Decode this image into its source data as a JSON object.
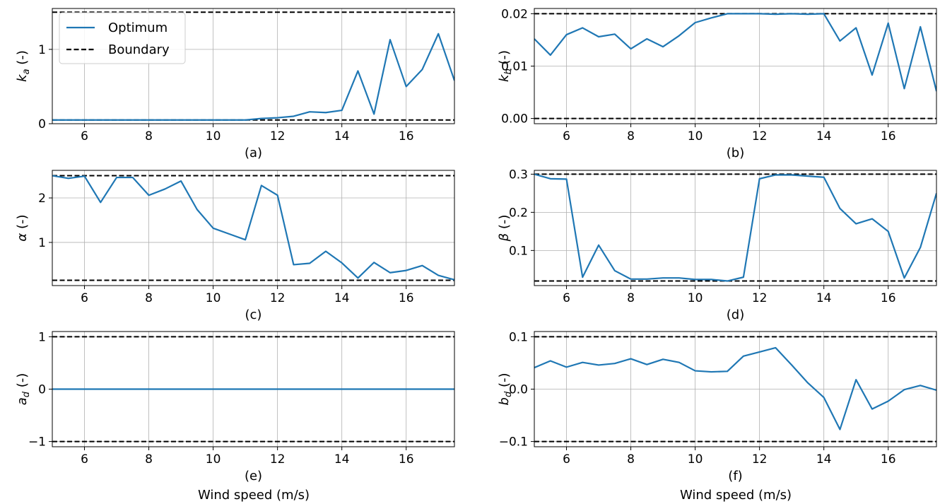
{
  "figure": {
    "legend_entries": [
      {
        "label": "Optimum",
        "color": "#1f77b4",
        "style": "solid"
      },
      {
        "label": "Boundary",
        "color": "#000000",
        "style": "dashed"
      }
    ],
    "xlabel": "Wind speed (m/s)"
  },
  "chart_data": [
    {
      "type": "line",
      "panel": "(a)",
      "ylabel": "k_a (-)",
      "ylabel_main": "k",
      "ylabel_sub": "a",
      "xlim": [
        5,
        17.5
      ],
      "ylim": [
        0,
        1.55
      ],
      "xticks": [
        6,
        8,
        10,
        12,
        14,
        16
      ],
      "yticks": [
        0,
        1
      ],
      "ytick_labels": [
        "0",
        "1"
      ],
      "grid": true,
      "legend": "top-left",
      "boundary": [
        0.05,
        1.5
      ],
      "series": [
        {
          "name": "Optimum",
          "x": [
            5,
            5.5,
            6,
            6.5,
            7,
            7.5,
            8,
            8.5,
            9,
            9.5,
            10,
            10.5,
            11,
            11.5,
            12,
            12.5,
            13,
            13.5,
            14,
            14.5,
            15,
            15.5,
            16,
            16.5,
            17,
            17.5
          ],
          "y": [
            0.05,
            0.05,
            0.05,
            0.05,
            0.05,
            0.05,
            0.05,
            0.05,
            0.05,
            0.05,
            0.05,
            0.05,
            0.05,
            0.07,
            0.08,
            0.1,
            0.16,
            0.15,
            0.18,
            0.71,
            0.13,
            1.13,
            0.5,
            0.73,
            1.21,
            0.58
          ]
        }
      ]
    },
    {
      "type": "line",
      "panel": "(b)",
      "ylabel": "k_b (-)",
      "ylabel_main": "k",
      "ylabel_sub": "b",
      "xlim": [
        5,
        17.5
      ],
      "ylim": [
        -0.001,
        0.021
      ],
      "xticks": [
        6,
        8,
        10,
        12,
        14,
        16
      ],
      "yticks": [
        0,
        0.01,
        0.02
      ],
      "ytick_labels": [
        "0.00",
        "0.01",
        "0.02"
      ],
      "grid": true,
      "boundary": [
        0,
        0.02
      ],
      "series": [
        {
          "name": "Optimum",
          "x": [
            5,
            5.5,
            6,
            6.5,
            7,
            7.5,
            8,
            8.5,
            9,
            9.5,
            10,
            10.5,
            11,
            11.5,
            12,
            12.5,
            13,
            13.5,
            14,
            14.5,
            15,
            15.5,
            16,
            16.5,
            17,
            17.5
          ],
          "y": [
            0.0152,
            0.0121,
            0.016,
            0.0173,
            0.0156,
            0.0161,
            0.0133,
            0.0152,
            0.0137,
            0.0158,
            0.0183,
            0.0192,
            0.02,
            0.02,
            0.02,
            0.0199,
            0.02,
            0.0199,
            0.02,
            0.0148,
            0.0173,
            0.0083,
            0.0182,
            0.0057,
            0.0175,
            0.0052
          ]
        }
      ]
    },
    {
      "type": "line",
      "panel": "(c)",
      "ylabel": "α (-)",
      "ylabel_main": "α",
      "ylabel_sub": "",
      "xlim": [
        5,
        17.5
      ],
      "ylim": [
        0.03,
        2.62
      ],
      "xticks": [
        6,
        8,
        10,
        12,
        14,
        16
      ],
      "yticks": [
        1,
        2
      ],
      "ytick_labels": [
        "1",
        "2"
      ],
      "grid": true,
      "boundary": [
        0.15,
        2.5
      ],
      "series": [
        {
          "name": "Optimum",
          "x": [
            5,
            5.5,
            6,
            6.5,
            7,
            7.5,
            8,
            8.5,
            9,
            9.5,
            10,
            10.5,
            11,
            11.5,
            12,
            12.5,
            13,
            13.5,
            14,
            14.5,
            15,
            15.5,
            16,
            16.5,
            17,
            17.5
          ],
          "y": [
            2.5,
            2.44,
            2.49,
            1.9,
            2.46,
            2.46,
            2.06,
            2.2,
            2.38,
            1.74,
            1.32,
            1.19,
            1.06,
            2.28,
            2.06,
            0.5,
            0.53,
            0.8,
            0.54,
            0.2,
            0.55,
            0.32,
            0.37,
            0.48,
            0.26,
            0.16
          ]
        }
      ]
    },
    {
      "type": "line",
      "panel": "(d)",
      "ylabel": "β (-)",
      "ylabel_main": "β",
      "ylabel_sub": "",
      "xlim": [
        5,
        17.5
      ],
      "ylim": [
        0.008,
        0.31
      ],
      "xticks": [
        6,
        8,
        10,
        12,
        14,
        16
      ],
      "yticks": [
        0.1,
        0.2,
        0.3
      ],
      "ytick_labels": [
        "0.1",
        "0.2",
        "0.3"
      ],
      "grid": true,
      "boundary": [
        0.02,
        0.3
      ],
      "series": [
        {
          "name": "Optimum",
          "x": [
            5,
            5.5,
            6,
            6.5,
            7,
            7.5,
            8,
            8.5,
            9,
            9.5,
            10,
            10.5,
            11,
            11.5,
            12,
            12.5,
            13,
            13.5,
            14,
            14.5,
            15,
            15.5,
            16,
            16.5,
            17,
            17.5
          ],
          "y": [
            0.3,
            0.288,
            0.287,
            0.03,
            0.114,
            0.047,
            0.025,
            0.025,
            0.028,
            0.028,
            0.024,
            0.024,
            0.02,
            0.03,
            0.288,
            0.298,
            0.298,
            0.295,
            0.292,
            0.21,
            0.17,
            0.183,
            0.15,
            0.028,
            0.108,
            0.25
          ]
        }
      ]
    },
    {
      "type": "line",
      "panel": "(e)",
      "ylabel": "a_d (-)",
      "ylabel_main": "a",
      "ylabel_sub": "d",
      "xlim": [
        5,
        17.5
      ],
      "ylim": [
        -1.1,
        1.1
      ],
      "xticks": [
        6,
        8,
        10,
        12,
        14,
        16
      ],
      "yticks": [
        -1,
        0,
        1
      ],
      "ytick_labels": [
        "−1",
        "0",
        "1"
      ],
      "grid": true,
      "boundary": [
        -1,
        1
      ],
      "series": [
        {
          "name": "Optimum",
          "x": [
            5,
            5.5,
            6,
            6.5,
            7,
            7.5,
            8,
            8.5,
            9,
            9.5,
            10,
            10.5,
            11,
            11.5,
            12,
            12.5,
            13,
            13.5,
            14,
            14.5,
            15,
            15.5,
            16,
            16.5,
            17,
            17.5
          ],
          "y": [
            0,
            0,
            0,
            0,
            0,
            0,
            0,
            0,
            0,
            0,
            0,
            0,
            0,
            0,
            0,
            0,
            0,
            0,
            0,
            0,
            0,
            0,
            0,
            0,
            0,
            0
          ]
        }
      ]
    },
    {
      "type": "line",
      "panel": "(f)",
      "ylabel": "b_d (-)",
      "ylabel_main": "b",
      "ylabel_sub": "d",
      "xlim": [
        5,
        17.5
      ],
      "ylim": [
        -0.11,
        0.11
      ],
      "xticks": [
        6,
        8,
        10,
        12,
        14,
        16
      ],
      "yticks": [
        -0.1,
        0,
        0.1
      ],
      "ytick_labels": [
        "−0.1",
        "0.0",
        "0.1"
      ],
      "grid": true,
      "boundary": [
        -0.1,
        0.1
      ],
      "series": [
        {
          "name": "Optimum",
          "x": [
            5,
            5.5,
            6,
            6.5,
            7,
            7.5,
            8,
            8.5,
            9,
            9.5,
            10,
            10.5,
            11,
            11.5,
            12,
            12.5,
            13,
            13.5,
            14,
            14.5,
            15,
            15.5,
            16,
            16.5,
            17,
            17.5
          ],
          "y": [
            0.041,
            0.054,
            0.042,
            0.051,
            0.046,
            0.049,
            0.058,
            0.047,
            0.057,
            0.051,
            0.035,
            0.033,
            0.034,
            0.063,
            0.071,
            0.079,
            0.046,
            0.012,
            -0.016,
            -0.077,
            0.018,
            -0.038,
            -0.023,
            -0.001,
            0.007,
            -0.002
          ]
        }
      ]
    }
  ]
}
